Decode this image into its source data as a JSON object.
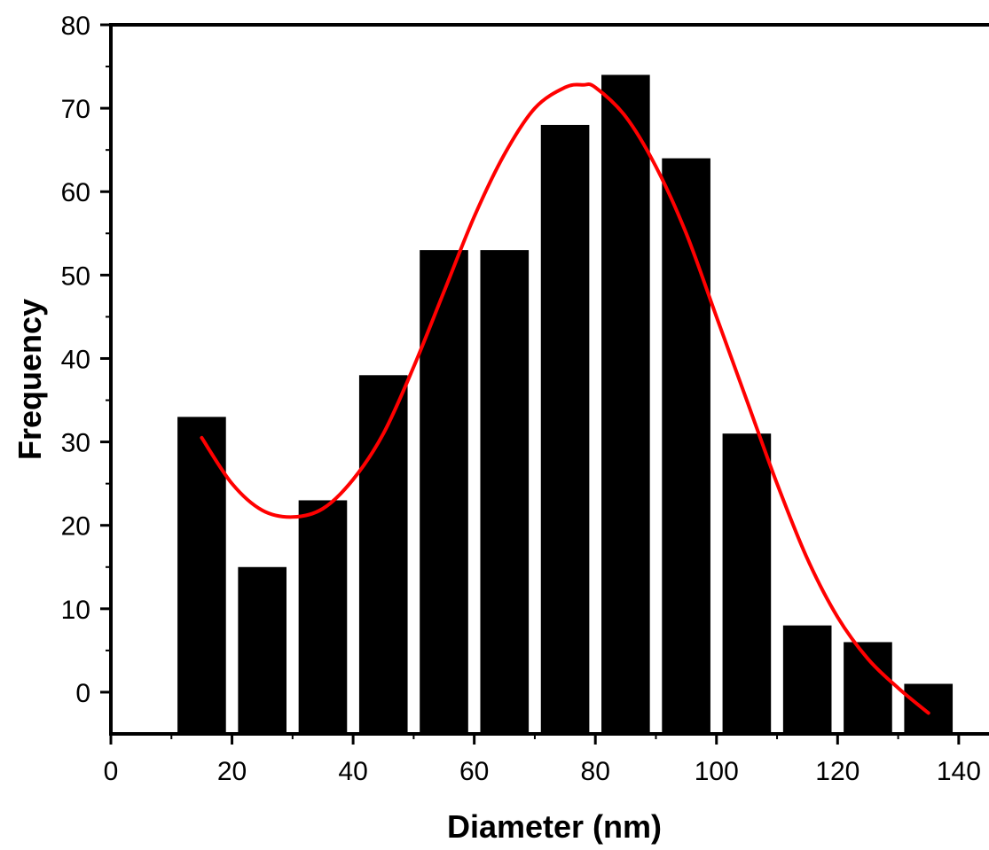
{
  "chart_data": {
    "type": "bar",
    "title": "",
    "xlabel": "Diameter (nm)",
    "ylabel": "Frequency",
    "xlim": [
      0,
      145
    ],
    "ylim": [
      -5,
      80
    ],
    "x_ticks": [
      0,
      20,
      40,
      60,
      80,
      100,
      120,
      140
    ],
    "y_ticks": [
      0,
      10,
      20,
      30,
      40,
      50,
      60,
      70,
      80
    ],
    "grid": false,
    "bin_width": 10,
    "bar_width": 8,
    "series": [
      {
        "type": "bar",
        "color": "#000000",
        "x": [
          15,
          25,
          35,
          45,
          55,
          65,
          75,
          85,
          95,
          105,
          115,
          125,
          135
        ],
        "values": [
          33,
          15,
          23,
          38,
          53,
          53,
          68,
          74,
          64,
          31,
          8,
          6,
          1
        ]
      },
      {
        "type": "line",
        "color": "#ff0000",
        "x": [
          15,
          20,
          25,
          30,
          35,
          40,
          45,
          50,
          55,
          60,
          65,
          70,
          75,
          78,
          80,
          85,
          90,
          95,
          100,
          105,
          110,
          115,
          120,
          125,
          130,
          135
        ],
        "values": [
          30.5,
          25,
          21.8,
          21,
          22,
          25.5,
          31,
          39,
          48,
          57,
          64.5,
          70,
          72.5,
          72.8,
          72.5,
          69,
          63,
          55,
          45,
          35,
          25,
          16,
          9,
          4,
          0.5,
          -2.5
        ]
      }
    ]
  }
}
